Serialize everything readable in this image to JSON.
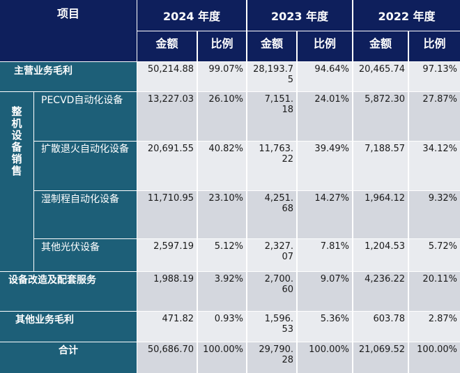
{
  "header": {
    "item": "项目",
    "years": [
      "2024 年度",
      "2023 年度",
      "2022 年度"
    ],
    "amount": "金额",
    "ratio": "比例"
  },
  "group_label": "整机设备销售",
  "rows": [
    {
      "label": "主营业务毛利",
      "v2024": "50,214.88",
      "r2024": "99.07%",
      "v2023": "28,193.75",
      "r2023": "94.64%",
      "v2022": "20,465.74",
      "r2022": "97.13%"
    },
    {
      "label": "PECVD自动化设备",
      "v2024": "13,227.03",
      "r2024": "26.10%",
      "v2023": "7,151.18",
      "r2023": "24.01%",
      "v2022": "5,872.30",
      "r2022": "27.87%"
    },
    {
      "label": "扩散退火自动化设备",
      "v2024": "20,691.55",
      "r2024": "40.82%",
      "v2023": "11,763.22",
      "r2023": "39.49%",
      "v2022": "7,188.57",
      "r2022": "34.12%"
    },
    {
      "label": "湿制程自动化设备",
      "v2024": "11,710.95",
      "r2024": "23.10%",
      "v2023": "4,251.68",
      "r2023": "14.27%",
      "v2022": "1,964.12",
      "r2022": "9.32%"
    },
    {
      "label": "其他光伏设备",
      "v2024": "2,597.19",
      "r2024": "5.12%",
      "v2023": "2,327.07",
      "r2023": "7.81%",
      "v2022": "1,204.53",
      "r2022": "5.72%"
    },
    {
      "label": "设备改造及配套服务",
      "v2024": "1,988.19",
      "r2024": "3.92%",
      "v2023": "2,700.60",
      "r2023": "9.07%",
      "v2022": "4,236.22",
      "r2022": "20.11%"
    },
    {
      "label": "其他业务毛利",
      "v2024": "471.82",
      "r2024": "0.93%",
      "v2023": "1,596.53",
      "r2023": "5.36%",
      "v2022": "603.78",
      "r2022": "2.87%"
    },
    {
      "label": "合计",
      "v2024": "50,686.70",
      "r2024": "100.00%",
      "v2023": "29,790.28",
      "r2023": "100.00%",
      "v2022": "21,069.52",
      "r2022": "100.00%"
    }
  ],
  "colors": {
    "header_bg": "#0e1f5c",
    "side_bg": "#1d5f78",
    "shade_a": "#d4d7de",
    "shade_b": "#e9ebef"
  }
}
